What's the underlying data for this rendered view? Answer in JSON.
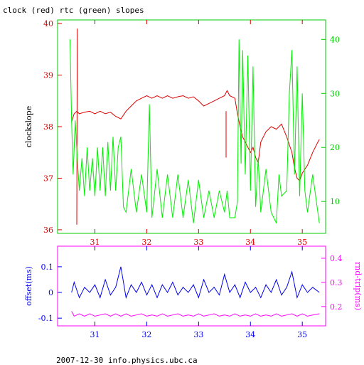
{
  "title": "clock (red) rtc (green) slopes",
  "footer": "2007-12-30 info.physics.ubc.ca",
  "colors": {
    "clock": "#dd0000",
    "rtc": "#00ee00",
    "top_axis": "#dd0000",
    "offset": "#0000ee",
    "rndtrip": "#ff00ff",
    "right_axis": "#00cc00"
  },
  "chart_data": [
    {
      "type": "line",
      "title": "clock (red) rtc (green) slopes",
      "xlabel": "",
      "ylabel": "clockslope",
      "y2label": "",
      "xlim": [
        30.28,
        35.45
      ],
      "ylim": [
        35.93,
        40.07
      ],
      "y2lim": [
        4.1,
        43.6
      ],
      "xticks": [
        "31",
        "32",
        "33",
        "34",
        "35"
      ],
      "yticks": [
        "36",
        "37",
        "38",
        "39",
        "40"
      ],
      "y2ticks": [
        "10",
        "20",
        "30",
        "40"
      ],
      "series": [
        {
          "axis": "left",
          "color": "#dd0000",
          "points": [
            [
              30.55,
              38.1
            ],
            [
              30.6,
              38.25
            ],
            [
              30.65,
              38.3
            ],
            [
              30.7,
              38.25
            ],
            [
              30.8,
              38.28
            ],
            [
              30.9,
              38.3
            ],
            [
              31.0,
              38.25
            ],
            [
              31.1,
              38.3
            ],
            [
              31.2,
              38.25
            ],
            [
              31.3,
              38.28
            ],
            [
              31.4,
              38.2
            ],
            [
              31.5,
              38.15
            ],
            [
              31.6,
              38.3
            ],
            [
              31.7,
              38.4
            ],
            [
              31.8,
              38.5
            ],
            [
              31.9,
              38.55
            ],
            [
              32.0,
              38.6
            ],
            [
              32.1,
              38.55
            ],
            [
              32.2,
              38.6
            ],
            [
              32.3,
              38.55
            ],
            [
              32.4,
              38.6
            ],
            [
              32.5,
              38.55
            ],
            [
              32.6,
              38.58
            ],
            [
              32.7,
              38.6
            ],
            [
              32.8,
              38.55
            ],
            [
              32.9,
              38.58
            ],
            [
              33.0,
              38.5
            ],
            [
              33.1,
              38.4
            ],
            [
              33.2,
              38.45
            ],
            [
              33.3,
              38.5
            ],
            [
              33.4,
              38.55
            ],
            [
              33.5,
              38.6
            ],
            [
              33.55,
              38.7
            ],
            [
              33.6,
              38.6
            ],
            [
              33.7,
              38.55
            ],
            [
              33.75,
              38.25
            ],
            [
              33.8,
              38.0
            ],
            [
              33.85,
              37.8
            ],
            [
              33.9,
              37.7
            ],
            [
              34.0,
              37.5
            ],
            [
              34.05,
              37.6
            ],
            [
              34.1,
              37.4
            ],
            [
              34.15,
              37.3
            ],
            [
              34.2,
              37.7
            ],
            [
              34.3,
              37.9
            ],
            [
              34.4,
              38.0
            ],
            [
              34.5,
              37.95
            ],
            [
              34.6,
              38.05
            ],
            [
              34.7,
              37.8
            ],
            [
              34.8,
              37.5
            ],
            [
              34.85,
              37.2
            ],
            [
              34.9,
              37.0
            ],
            [
              34.95,
              36.95
            ],
            [
              35.0,
              37.1
            ],
            [
              35.1,
              37.25
            ],
            [
              35.2,
              37.5
            ],
            [
              35.3,
              37.7
            ],
            [
              35.33,
              37.75
            ]
          ]
        },
        {
          "axis": "left",
          "color": "#dd0000",
          "points": [
            [
              30.65,
              36.1
            ],
            [
              30.66,
              39.9
            ]
          ]
        },
        {
          "axis": "left",
          "color": "#dd0000",
          "points": [
            [
              33.53,
              38.3
            ],
            [
              33.53,
              37.4
            ]
          ]
        },
        {
          "axis": "right",
          "color": "#00ee00",
          "points": [
            [
              30.52,
              40
            ],
            [
              30.55,
              25
            ],
            [
              30.58,
              15
            ],
            [
              30.62,
              25
            ],
            [
              30.66,
              18
            ],
            [
              30.7,
              12
            ],
            [
              30.75,
              18
            ],
            [
              30.8,
              11
            ],
            [
              30.85,
              20
            ],
            [
              30.9,
              12
            ],
            [
              30.95,
              18
            ],
            [
              31.0,
              11
            ],
            [
              31.05,
              20
            ],
            [
              31.1,
              12
            ],
            [
              31.15,
              20
            ],
            [
              31.2,
              11
            ],
            [
              31.25,
              21
            ],
            [
              31.3,
              12
            ],
            [
              31.35,
              22
            ],
            [
              31.4,
              12
            ],
            [
              31.45,
              20
            ],
            [
              31.5,
              22
            ],
            [
              31.55,
              9
            ],
            [
              31.6,
              8
            ],
            [
              31.7,
              16
            ],
            [
              31.8,
              8
            ],
            [
              31.9,
              15
            ],
            [
              32.0,
              8
            ],
            [
              32.05,
              28
            ],
            [
              32.1,
              7
            ],
            [
              32.2,
              16
            ],
            [
              32.3,
              7
            ],
            [
              32.4,
              15
            ],
            [
              32.5,
              7
            ],
            [
              32.6,
              15
            ],
            [
              32.7,
              7
            ],
            [
              32.8,
              14
            ],
            [
              32.9,
              6
            ],
            [
              33.0,
              14
            ],
            [
              33.1,
              7
            ],
            [
              33.2,
              12
            ],
            [
              33.3,
              7
            ],
            [
              33.4,
              12
            ],
            [
              33.5,
              8
            ],
            [
              33.55,
              12
            ],
            [
              33.6,
              7
            ],
            [
              33.7,
              7
            ],
            [
              33.75,
              10
            ],
            [
              33.78,
              40
            ],
            [
              33.82,
              17
            ],
            [
              33.85,
              38
            ],
            [
              33.9,
              15
            ],
            [
              33.95,
              37
            ],
            [
              34.0,
              12
            ],
            [
              34.05,
              35
            ],
            [
              34.1,
              9
            ],
            [
              34.15,
              18
            ],
            [
              34.2,
              8
            ],
            [
              34.3,
              16
            ],
            [
              34.4,
              8
            ],
            [
              34.5,
              6
            ],
            [
              34.55,
              15
            ],
            [
              34.6,
              11
            ],
            [
              34.7,
              12
            ],
            [
              34.75,
              30
            ],
            [
              34.8,
              38
            ],
            [
              34.85,
              15
            ],
            [
              34.9,
              35
            ],
            [
              34.95,
              11
            ],
            [
              35.0,
              30
            ],
            [
              35.05,
              12
            ],
            [
              35.1,
              8
            ],
            [
              35.2,
              15
            ],
            [
              35.3,
              8
            ],
            [
              35.33,
              6
            ]
          ]
        }
      ]
    },
    {
      "type": "line",
      "xlabel": "",
      "ylabel": "offset(ms)",
      "y2label": "rnd-trip(ms)",
      "xlim": [
        30.28,
        35.45
      ],
      "ylim": [
        -0.13,
        0.18
      ],
      "y2lim": [
        0.12,
        0.45
      ],
      "xticks": [
        "31",
        "32",
        "33",
        "34",
        "35"
      ],
      "yticks": [
        "-0.1",
        "0",
        "0.1"
      ],
      "y2ticks": [
        "0.2",
        "0.3",
        "0.4"
      ],
      "series": [
        {
          "axis": "left",
          "color": "#0000ee",
          "points": [
            [
              30.55,
              0.0
            ],
            [
              30.6,
              0.04
            ],
            [
              30.7,
              -0.02
            ],
            [
              30.8,
              0.02
            ],
            [
              30.9,
              0.0
            ],
            [
              31.0,
              0.03
            ],
            [
              31.1,
              -0.02
            ],
            [
              31.2,
              0.05
            ],
            [
              31.3,
              -0.01
            ],
            [
              31.4,
              0.02
            ],
            [
              31.5,
              0.1
            ],
            [
              31.6,
              -0.02
            ],
            [
              31.7,
              0.03
            ],
            [
              31.8,
              0.0
            ],
            [
              31.9,
              0.04
            ],
            [
              32.0,
              -0.01
            ],
            [
              32.1,
              0.03
            ],
            [
              32.2,
              -0.02
            ],
            [
              32.3,
              0.03
            ],
            [
              32.4,
              0.0
            ],
            [
              32.5,
              0.04
            ],
            [
              32.6,
              -0.01
            ],
            [
              32.7,
              0.02
            ],
            [
              32.8,
              0.0
            ],
            [
              32.9,
              0.03
            ],
            [
              33.0,
              -0.02
            ],
            [
              33.1,
              0.05
            ],
            [
              33.2,
              0.0
            ],
            [
              33.3,
              0.02
            ],
            [
              33.4,
              -0.01
            ],
            [
              33.5,
              0.07
            ],
            [
              33.6,
              0.0
            ],
            [
              33.7,
              0.03
            ],
            [
              33.8,
              -0.02
            ],
            [
              33.9,
              0.04
            ],
            [
              34.0,
              0.0
            ],
            [
              34.1,
              0.02
            ],
            [
              34.2,
              -0.02
            ],
            [
              34.3,
              0.03
            ],
            [
              34.4,
              0.0
            ],
            [
              34.5,
              0.05
            ],
            [
              34.6,
              -0.01
            ],
            [
              34.7,
              0.02
            ],
            [
              34.8,
              0.08
            ],
            [
              34.9,
              -0.02
            ],
            [
              35.0,
              0.03
            ],
            [
              35.1,
              0.0
            ],
            [
              35.2,
              0.02
            ],
            [
              35.33,
              0.0
            ]
          ]
        },
        {
          "axis": "right",
          "color": "#ff00ff",
          "points": [
            [
              30.55,
              0.18
            ],
            [
              30.6,
              0.16
            ],
            [
              30.7,
              0.17
            ],
            [
              30.8,
              0.16
            ],
            [
              30.9,
              0.17
            ],
            [
              31.0,
              0.16
            ],
            [
              31.1,
              0.165
            ],
            [
              31.2,
              0.17
            ],
            [
              31.3,
              0.16
            ],
            [
              31.4,
              0.17
            ],
            [
              31.5,
              0.16
            ],
            [
              31.6,
              0.17
            ],
            [
              31.7,
              0.16
            ],
            [
              31.8,
              0.165
            ],
            [
              31.9,
              0.17
            ],
            [
              32.0,
              0.16
            ],
            [
              32.1,
              0.165
            ],
            [
              32.2,
              0.16
            ],
            [
              32.3,
              0.17
            ],
            [
              32.4,
              0.16
            ],
            [
              32.5,
              0.165
            ],
            [
              32.6,
              0.17
            ],
            [
              32.7,
              0.16
            ],
            [
              32.8,
              0.165
            ],
            [
              32.9,
              0.16
            ],
            [
              33.0,
              0.17
            ],
            [
              33.1,
              0.16
            ],
            [
              33.2,
              0.165
            ],
            [
              33.3,
              0.17
            ],
            [
              33.4,
              0.16
            ],
            [
              33.5,
              0.165
            ],
            [
              33.6,
              0.16
            ],
            [
              33.7,
              0.17
            ],
            [
              33.8,
              0.16
            ],
            [
              33.9,
              0.165
            ],
            [
              34.0,
              0.16
            ],
            [
              34.1,
              0.17
            ],
            [
              34.2,
              0.16
            ],
            [
              34.3,
              0.165
            ],
            [
              34.4,
              0.16
            ],
            [
              34.5,
              0.17
            ],
            [
              34.6,
              0.16
            ],
            [
              34.7,
              0.165
            ],
            [
              34.8,
              0.17
            ],
            [
              34.9,
              0.16
            ],
            [
              35.0,
              0.17
            ],
            [
              35.1,
              0.16
            ],
            [
              35.2,
              0.165
            ],
            [
              35.33,
              0.17
            ]
          ]
        }
      ]
    }
  ]
}
